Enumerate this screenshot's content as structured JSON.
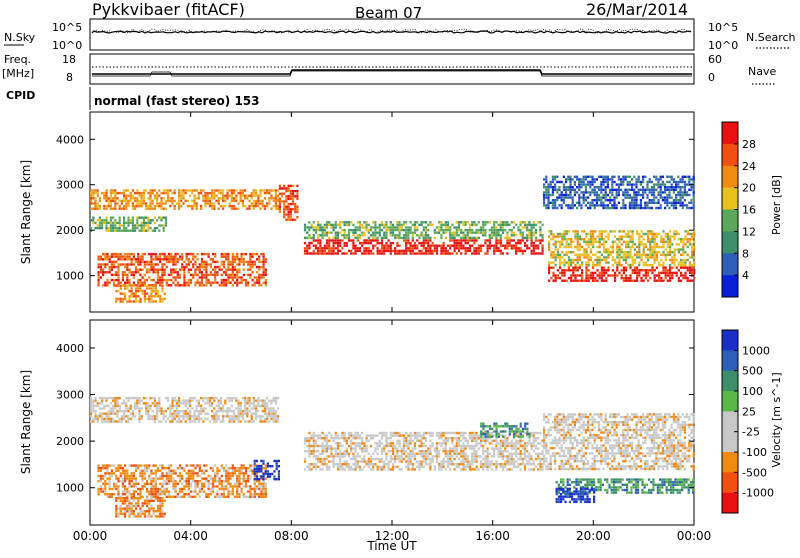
{
  "header": {
    "title": "Pykkvibaer (fitACF)",
    "beam": "Beam 07",
    "date": "26/Mar/2014"
  },
  "top_panels": {
    "nsky_label": "N.Sky",
    "nsearch_label": "N.Search",
    "left_ticks_top": [
      "10^5",
      "10^0"
    ],
    "right_ticks_top": [
      "10^5",
      "10^0"
    ],
    "freq_label": "Freq.",
    "freq_unit": "[MHz]",
    "left_ticks_freq": [
      "18",
      "8"
    ],
    "nave_label": "Nave",
    "right_ticks_nave": [
      "60",
      "0"
    ],
    "cpid_label": "CPID",
    "cpid_value": "normal (fast stereo) 153"
  },
  "colors": {
    "power": [
      "#0a1fd8",
      "#2d5fb8",
      "#3d8f6a",
      "#5aa85a",
      "#e8c020",
      "#f08a10",
      "#f05010",
      "#e81010"
    ],
    "velocity": [
      "#e81010",
      "#f05010",
      "#f08a10",
      "#c8c8c8",
      "#c8c8c8",
      "#5ab848",
      "#3d8f6a",
      "#2d5fb8",
      "#1a2fc8"
    ]
  },
  "chart_data": [
    {
      "type": "heatmap",
      "name": "Power",
      "ylabel": "Slant Range [km]",
      "colorbar_label": "Power [dB]",
      "colorbar_ticks": [
        "4",
        "8",
        "12",
        "16",
        "20",
        "24",
        "28"
      ],
      "yticks": [
        "1000",
        "2000",
        "3000",
        "4000"
      ],
      "ylim": [
        200,
        4600
      ],
      "bands": [
        {
          "t0": 0.0,
          "t1": 7.5,
          "r0": 2450,
          "r1": 2900,
          "level": 5
        },
        {
          "t0": 0.0,
          "t1": 3.0,
          "r0": 2000,
          "r1": 2300,
          "level": 3
        },
        {
          "t0": 0.3,
          "t1": 7.0,
          "r0": 800,
          "r1": 1500,
          "level": 6
        },
        {
          "t0": 1.0,
          "t1": 3.0,
          "r0": 400,
          "r1": 800,
          "level": 5
        },
        {
          "t0": 7.5,
          "t1": 8.2,
          "r0": 2200,
          "r1": 3000,
          "level": 6
        },
        {
          "t0": 8.5,
          "t1": 18.0,
          "r0": 1500,
          "r1": 1800,
          "level": 7
        },
        {
          "t0": 8.5,
          "t1": 18.0,
          "r0": 1800,
          "r1": 2200,
          "level": 3
        },
        {
          "t0": 18.2,
          "t1": 24.0,
          "r0": 900,
          "r1": 1200,
          "level": 7
        },
        {
          "t0": 18.2,
          "t1": 24.0,
          "r0": 1200,
          "r1": 2000,
          "level": 4
        },
        {
          "t0": 18.0,
          "t1": 24.0,
          "r0": 2500,
          "r1": 3200,
          "level": 1
        }
      ]
    },
    {
      "type": "heatmap",
      "name": "Velocity",
      "xlabel": "Time UT",
      "ylabel": "Slant Range [km]",
      "colorbar_label": "Velocity [m s^-1]",
      "colorbar_ticks": [
        "-1000",
        "-500",
        "-100",
        "-25",
        "25",
        "100",
        "500",
        "1000"
      ],
      "xticks": [
        "00:00",
        "04:00",
        "08:00",
        "12:00",
        "16:00",
        "20:00",
        "00:00"
      ],
      "yticks": [
        "1000",
        "2000",
        "3000",
        "4000"
      ],
      "ylim": [
        200,
        4600
      ],
      "xlim": [
        0,
        24
      ],
      "bands": [
        {
          "t0": 0.0,
          "t1": 7.5,
          "r0": 2400,
          "r1": 2950,
          "level": 3
        },
        {
          "t0": 0.3,
          "t1": 7.0,
          "r0": 800,
          "r1": 1500,
          "level": 2
        },
        {
          "t0": 1.0,
          "t1": 3.0,
          "r0": 400,
          "r1": 800,
          "level": 2
        },
        {
          "t0": 6.5,
          "t1": 7.5,
          "r0": 1200,
          "r1": 1600,
          "level": 8
        },
        {
          "t0": 8.5,
          "t1": 18.0,
          "r0": 1400,
          "r1": 2200,
          "level": 3
        },
        {
          "t0": 15.5,
          "t1": 17.5,
          "r0": 2100,
          "r1": 2400,
          "level": 6
        },
        {
          "t0": 18.5,
          "t1": 24.0,
          "r0": 900,
          "r1": 1200,
          "level": 6
        },
        {
          "t0": 18.5,
          "t1": 20.0,
          "r0": 700,
          "r1": 1000,
          "level": 8
        },
        {
          "t0": 18.0,
          "t1": 24.0,
          "r0": 1400,
          "r1": 2600,
          "level": 3
        }
      ]
    }
  ]
}
